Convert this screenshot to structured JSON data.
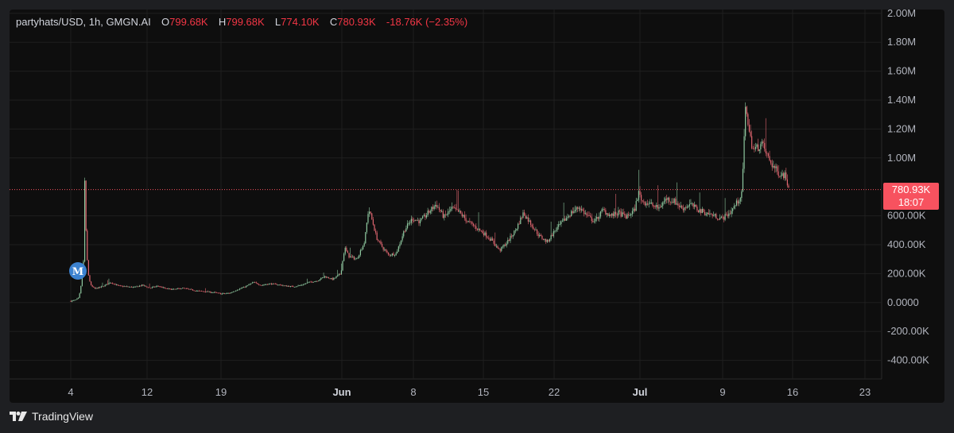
{
  "legend": {
    "symbol": "partyhats/USD, 1h, GMGN.AI",
    "open_key": "O",
    "open": "799.68K",
    "high_key": "H",
    "high": "799.68K",
    "low_key": "L",
    "low": "774.10K",
    "close_key": "C",
    "close": "780.93K",
    "change": "-18.76K (−2.35%)"
  },
  "last_price": {
    "value": "780.93K",
    "countdown": "18:07"
  },
  "marker": {
    "letter": "M"
  },
  "footer": {
    "brand": "TradingView"
  },
  "colors": {
    "background": "#0e0e0e",
    "up": "#8fc9a0",
    "down": "#e06670",
    "grid": "#1f1f1f",
    "price_line": "#f7525f",
    "marker": "#3c82d0",
    "axis_text": "#b2b5be"
  },
  "chart_data": {
    "type": "candlestick",
    "symbol": "partyhats/USD",
    "interval": "1h",
    "y_axis": {
      "ticks": [
        2000000,
        1800000,
        1600000,
        1400000,
        1200000,
        1000000,
        600000,
        400000,
        200000,
        0,
        -200000,
        -400000
      ],
      "tick_labels": [
        "2.00M",
        "1.80M",
        "1.60M",
        "1.40M",
        "1.20M",
        "1.00M",
        "600.00K",
        "400.00K",
        "200.00K",
        "0.0000",
        "-200.00K",
        "-400.00K"
      ],
      "range": [
        -450000,
        2030000
      ]
    },
    "x_axis": {
      "ticks": [
        "4",
        "12",
        "19",
        "Jun",
        "8",
        "15",
        "22",
        "Jul",
        "9",
        "16",
        "23"
      ],
      "bold_ticks": [
        "Jun",
        "Jul"
      ]
    },
    "last_price": 780930,
    "series": [
      {
        "name": "price",
        "points": [
          [
            0,
            10000
          ],
          [
            5,
            15000
          ],
          [
            10,
            30000
          ],
          [
            12,
            80000
          ],
          [
            14,
            160000
          ],
          [
            16,
            280000
          ],
          [
            17,
            600000
          ],
          [
            18,
            1000000
          ],
          [
            19,
            520000
          ],
          [
            20,
            350000
          ],
          [
            22,
            200000
          ],
          [
            25,
            120000
          ],
          [
            30,
            95000
          ],
          [
            40,
            110000
          ],
          [
            50,
            140000
          ],
          [
            60,
            115000
          ],
          [
            70,
            110000
          ],
          [
            80,
            105000
          ],
          [
            90,
            120000
          ],
          [
            100,
            100000
          ],
          [
            110,
            115000
          ],
          [
            120,
            95000
          ],
          [
            130,
            90000
          ],
          [
            140,
            100000
          ],
          [
            150,
            90000
          ],
          [
            160,
            80000
          ],
          [
            170,
            75000
          ],
          [
            180,
            70000
          ],
          [
            190,
            60000
          ],
          [
            200,
            65000
          ],
          [
            210,
            90000
          ],
          [
            220,
            110000
          ],
          [
            230,
            140000
          ],
          [
            240,
            120000
          ],
          [
            250,
            130000
          ],
          [
            260,
            125000
          ],
          [
            270,
            115000
          ],
          [
            280,
            110000
          ],
          [
            290,
            120000
          ],
          [
            300,
            140000
          ],
          [
            310,
            150000
          ],
          [
            320,
            180000
          ],
          [
            330,
            160000
          ],
          [
            340,
            200000
          ],
          [
            345,
            380000
          ],
          [
            350,
            320000
          ],
          [
            360,
            300000
          ],
          [
            370,
            420000
          ],
          [
            375,
            650000
          ],
          [
            380,
            560000
          ],
          [
            385,
            450000
          ],
          [
            390,
            400000
          ],
          [
            400,
            330000
          ],
          [
            410,
            340000
          ],
          [
            420,
            500000
          ],
          [
            430,
            580000
          ],
          [
            440,
            560000
          ],
          [
            450,
            620000
          ],
          [
            460,
            680000
          ],
          [
            470,
            590000
          ],
          [
            480,
            650000
          ],
          [
            490,
            620000
          ],
          [
            500,
            560000
          ],
          [
            510,
            520000
          ],
          [
            520,
            480000
          ],
          [
            530,
            430000
          ],
          [
            540,
            360000
          ],
          [
            550,
            420000
          ],
          [
            560,
            500000
          ],
          [
            570,
            620000
          ],
          [
            580,
            540000
          ],
          [
            590,
            460000
          ],
          [
            600,
            420000
          ],
          [
            610,
            500000
          ],
          [
            620,
            560000
          ],
          [
            630,
            620000
          ],
          [
            640,
            660000
          ],
          [
            650,
            600000
          ],
          [
            660,
            560000
          ],
          [
            670,
            640000
          ],
          [
            680,
            600000
          ],
          [
            690,
            620000
          ],
          [
            700,
            590000
          ],
          [
            710,
            640000
          ],
          [
            715,
            760000
          ],
          [
            720,
            700000
          ],
          [
            730,
            680000
          ],
          [
            740,
            650000
          ],
          [
            750,
            720000
          ],
          [
            760,
            700000
          ],
          [
            770,
            650000
          ],
          [
            780,
            680000
          ],
          [
            790,
            640000
          ],
          [
            800,
            620000
          ],
          [
            810,
            600000
          ],
          [
            820,
            580000
          ],
          [
            830,
            620000
          ],
          [
            840,
            700000
          ],
          [
            845,
            750000
          ],
          [
            850,
            1380000
          ],
          [
            855,
            1150000
          ],
          [
            860,
            1050000
          ],
          [
            870,
            1100000
          ],
          [
            880,
            980000
          ],
          [
            890,
            900000
          ],
          [
            900,
            880000
          ],
          [
            905,
            780930
          ]
        ]
      }
    ],
    "grid": true
  }
}
